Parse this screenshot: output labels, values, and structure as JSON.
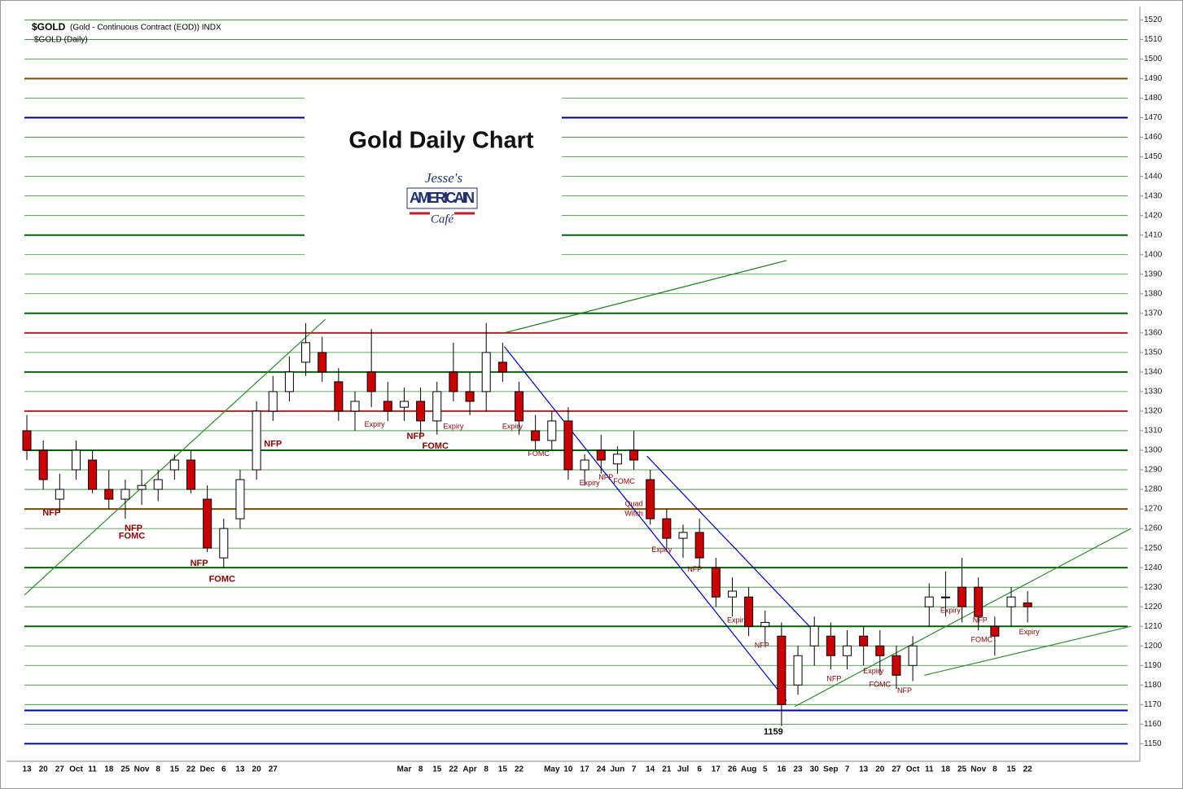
{
  "chart_data": {
    "type": "candlestick",
    "title": "Gold Daily Chart",
    "header": "$GOLD",
    "header_detail": "(Gold - Continuous Contract (EOD)) INDX",
    "subheader": "$GOLD (Daily)",
    "logo": {
      "top": "Jesse's",
      "middle": "AMERICAIN",
      "bottom": "Café"
    },
    "categories": [
      "13",
      "20",
      "27",
      "Oct",
      "11",
      "18",
      "25",
      "Nov",
      "8",
      "15",
      "22",
      "Dec",
      "6",
      "13",
      "20",
      "27",
      null,
      null,
      null,
      null,
      null,
      null,
      null,
      "Mar",
      "8",
      "15",
      "22",
      "Apr",
      "8",
      "15",
      "22",
      null,
      "May",
      "10",
      "17",
      "24",
      "Jun",
      "7",
      "14",
      "21",
      "Jul",
      "6",
      "17",
      "26",
      "Aug",
      "5",
      "16",
      "23",
      "30",
      "Sep",
      "7",
      "13",
      "20",
      "27",
      "Oct",
      "11",
      "18",
      "25",
      "Nov",
      "8",
      "15",
      "22"
    ],
    "open": [
      1310,
      1300,
      1275,
      1290,
      1295,
      1280,
      1275,
      1280,
      1280,
      1290,
      1295,
      1275,
      1245,
      1265,
      1290,
      1320,
      1330,
      1345,
      1350,
      1335,
      1320,
      1340,
      1325,
      1322,
      1325,
      1315,
      1340,
      1330,
      1330,
      1345,
      1330,
      1310,
      1305,
      1315,
      1290,
      1300,
      1293,
      1300,
      1285,
      1265,
      1255,
      1258,
      1240,
      1225,
      1225,
      1210,
      1205,
      1180,
      1200,
      1205,
      1195,
      1205,
      1200,
      1195,
      1190,
      1220,
      1225,
      1230,
      1230,
      1210,
      1220,
      1222
    ],
    "high": [
      1318,
      1305,
      1288,
      1305,
      1300,
      1290,
      1285,
      1290,
      1290,
      1298,
      1300,
      1282,
      1265,
      1290,
      1325,
      1338,
      1348,
      1365,
      1358,
      1342,
      1330,
      1362,
      1335,
      1332,
      1332,
      1335,
      1355,
      1340,
      1365,
      1355,
      1335,
      1318,
      1320,
      1322,
      1298,
      1308,
      1302,
      1310,
      1290,
      1270,
      1262,
      1265,
      1245,
      1235,
      1230,
      1218,
      1212,
      1200,
      1215,
      1212,
      1208,
      1210,
      1208,
      1200,
      1205,
      1232,
      1238,
      1245,
      1235,
      1215,
      1230,
      1228
    ],
    "low": [
      1295,
      1280,
      1268,
      1285,
      1278,
      1270,
      1265,
      1272,
      1274,
      1285,
      1278,
      1248,
      1240,
      1260,
      1285,
      1315,
      1325,
      1338,
      1335,
      1315,
      1310,
      1322,
      1315,
      1315,
      1308,
      1308,
      1325,
      1318,
      1320,
      1335,
      1308,
      1300,
      1300,
      1285,
      1282,
      1288,
      1288,
      1290,
      1262,
      1250,
      1245,
      1240,
      1220,
      1215,
      1205,
      1200,
      1159,
      1175,
      1190,
      1188,
      1188,
      1190,
      1185,
      1178,
      1182,
      1210,
      1215,
      1212,
      1208,
      1195,
      1210,
      1212
    ],
    "close": [
      1300,
      1285,
      1280,
      1300,
      1280,
      1275,
      1280,
      1282,
      1285,
      1295,
      1280,
      1250,
      1260,
      1285,
      1320,
      1330,
      1340,
      1355,
      1340,
      1320,
      1325,
      1330,
      1320,
      1325,
      1315,
      1330,
      1330,
      1325,
      1350,
      1340,
      1315,
      1305,
      1315,
      1290,
      1295,
      1295,
      1298,
      1295,
      1265,
      1255,
      1258,
      1245,
      1225,
      1228,
      1210,
      1212,
      1170,
      1195,
      1210,
      1195,
      1200,
      1200,
      1195,
      1185,
      1200,
      1225,
      1225,
      1220,
      1215,
      1205,
      1225,
      1220
    ],
    "up_color": "#ffffff",
    "down_color": "#cc0000",
    "wick_color": "#000000",
    "ylim": [
      1141,
      1526
    ],
    "yticks": [
      1150,
      1160,
      1170,
      1180,
      1190,
      1200,
      1210,
      1220,
      1230,
      1240,
      1250,
      1260,
      1270,
      1280,
      1290,
      1300,
      1310,
      1320,
      1330,
      1340,
      1350,
      1360,
      1370,
      1380,
      1390,
      1400,
      1410,
      1420,
      1430,
      1440,
      1450,
      1460,
      1470,
      1480,
      1490,
      1500,
      1510,
      1520
    ],
    "grid": true,
    "grid_color": "#2e8b2e",
    "levels": [
      {
        "value": 1490,
        "color": "#7a4a00"
      },
      {
        "value": 1470,
        "color": "#000080"
      },
      {
        "value": 1410,
        "color": "#006400"
      },
      {
        "value": 1370,
        "color": "#006400"
      },
      {
        "value": 1360,
        "color": "#b22222"
      },
      {
        "value": 1340,
        "color": "#006400"
      },
      {
        "value": 1320,
        "color": "#b22222"
      },
      {
        "value": 1300,
        "color": "#006400"
      },
      {
        "value": 1270,
        "color": "#7a4a00"
      },
      {
        "value": 1240,
        "color": "#006400"
      },
      {
        "value": 1210,
        "color": "#006400"
      },
      {
        "value": 1167,
        "color": "#0000aa"
      },
      {
        "value": 1150,
        "color": "#0000aa"
      }
    ],
    "trendlines": [
      {
        "from": [
          -0.15,
          1226
        ],
        "to": [
          18.2,
          1367
        ],
        "color": "#2e8b2e"
      },
      {
        "from": [
          29.1,
          1360
        ],
        "to": [
          46.3,
          1397
        ],
        "color": "#1a7a1a"
      },
      {
        "from": [
          46.8,
          1169
        ],
        "to": [
          67.3,
          1260
        ],
        "color": "#2e8b2e"
      },
      {
        "from": [
          54.7,
          1185
        ],
        "to": [
          67.3,
          1210
        ],
        "color": "#2e8b2e"
      },
      {
        "from": [
          29.1,
          1353
        ],
        "to": [
          46.3,
          1172
        ],
        "color": "#0000cc"
      },
      {
        "from": [
          37.8,
          1297
        ],
        "to": [
          47.7,
          1210
        ],
        "color": "#0000cc"
      }
    ],
    "annotations": [
      {
        "text": "NFP",
        "index": 1.5,
        "price": 1268,
        "style": "big"
      },
      {
        "text": "NFP",
        "index": 6.5,
        "price": 1260,
        "style": "big"
      },
      {
        "text": "FOMC",
        "index": 6.4,
        "price": 1256,
        "style": "big"
      },
      {
        "text": "NFP",
        "index": 10.5,
        "price": 1242,
        "style": "big"
      },
      {
        "text": "FOMC",
        "index": 11.9,
        "price": 1234,
        "style": "big"
      },
      {
        "text": "NFP",
        "index": 15,
        "price": 1303,
        "style": "big"
      },
      {
        "text": "Expiry",
        "index": 21.2,
        "price": 1313,
        "style": "small"
      },
      {
        "text": "NFP",
        "index": 23.7,
        "price": 1307,
        "style": "big"
      },
      {
        "text": "FOMC",
        "index": 24.9,
        "price": 1302,
        "style": "big"
      },
      {
        "text": "Expiry",
        "index": 26,
        "price": 1312,
        "style": "small"
      },
      {
        "text": "Expiry",
        "index": 29.6,
        "price": 1312,
        "style": "small"
      },
      {
        "text": "FOMC",
        "index": 31.2,
        "price": 1298,
        "style": "small"
      },
      {
        "text": "Expiry",
        "index": 34.3,
        "price": 1283,
        "style": "small"
      },
      {
        "text": "NFP",
        "index": 35.3,
        "price": 1286,
        "style": "small"
      },
      {
        "text": "FOMC",
        "index": 36.4,
        "price": 1284,
        "style": "small"
      },
      {
        "text": "Quad",
        "index": 37,
        "price": 1272.5,
        "style": "small"
      },
      {
        "text": "Witch",
        "index": 37,
        "price": 1267.5,
        "style": "small"
      },
      {
        "text": "Expiry",
        "index": 38.7,
        "price": 1249,
        "style": "small"
      },
      {
        "text": "NFP",
        "index": 40.7,
        "price": 1239,
        "style": "small"
      },
      {
        "text": "Expiry",
        "index": 43.3,
        "price": 1213,
        "style": "small"
      },
      {
        "text": "NFP",
        "index": 44.8,
        "price": 1200,
        "style": "small"
      },
      {
        "text": "1159",
        "index": 45.5,
        "price": 1156,
        "style": "low"
      },
      {
        "text": "NFP",
        "index": 49.2,
        "price": 1183,
        "style": "small"
      },
      {
        "text": "Expiry",
        "index": 51.6,
        "price": 1187,
        "style": "small"
      },
      {
        "text": "FOMC",
        "index": 52,
        "price": 1180,
        "style": "small"
      },
      {
        "text": "NFP",
        "index": 53.5,
        "price": 1177,
        "style": "small"
      },
      {
        "text": "Expiry",
        "index": 56.3,
        "price": 1218,
        "style": "small"
      },
      {
        "text": "NFP",
        "index": 58.1,
        "price": 1213,
        "style": "small"
      },
      {
        "text": "FOMC",
        "index": 58.2,
        "price": 1203,
        "style": "small"
      },
      {
        "text": "Expiry",
        "index": 61.1,
        "price": 1207,
        "style": "small"
      }
    ]
  }
}
